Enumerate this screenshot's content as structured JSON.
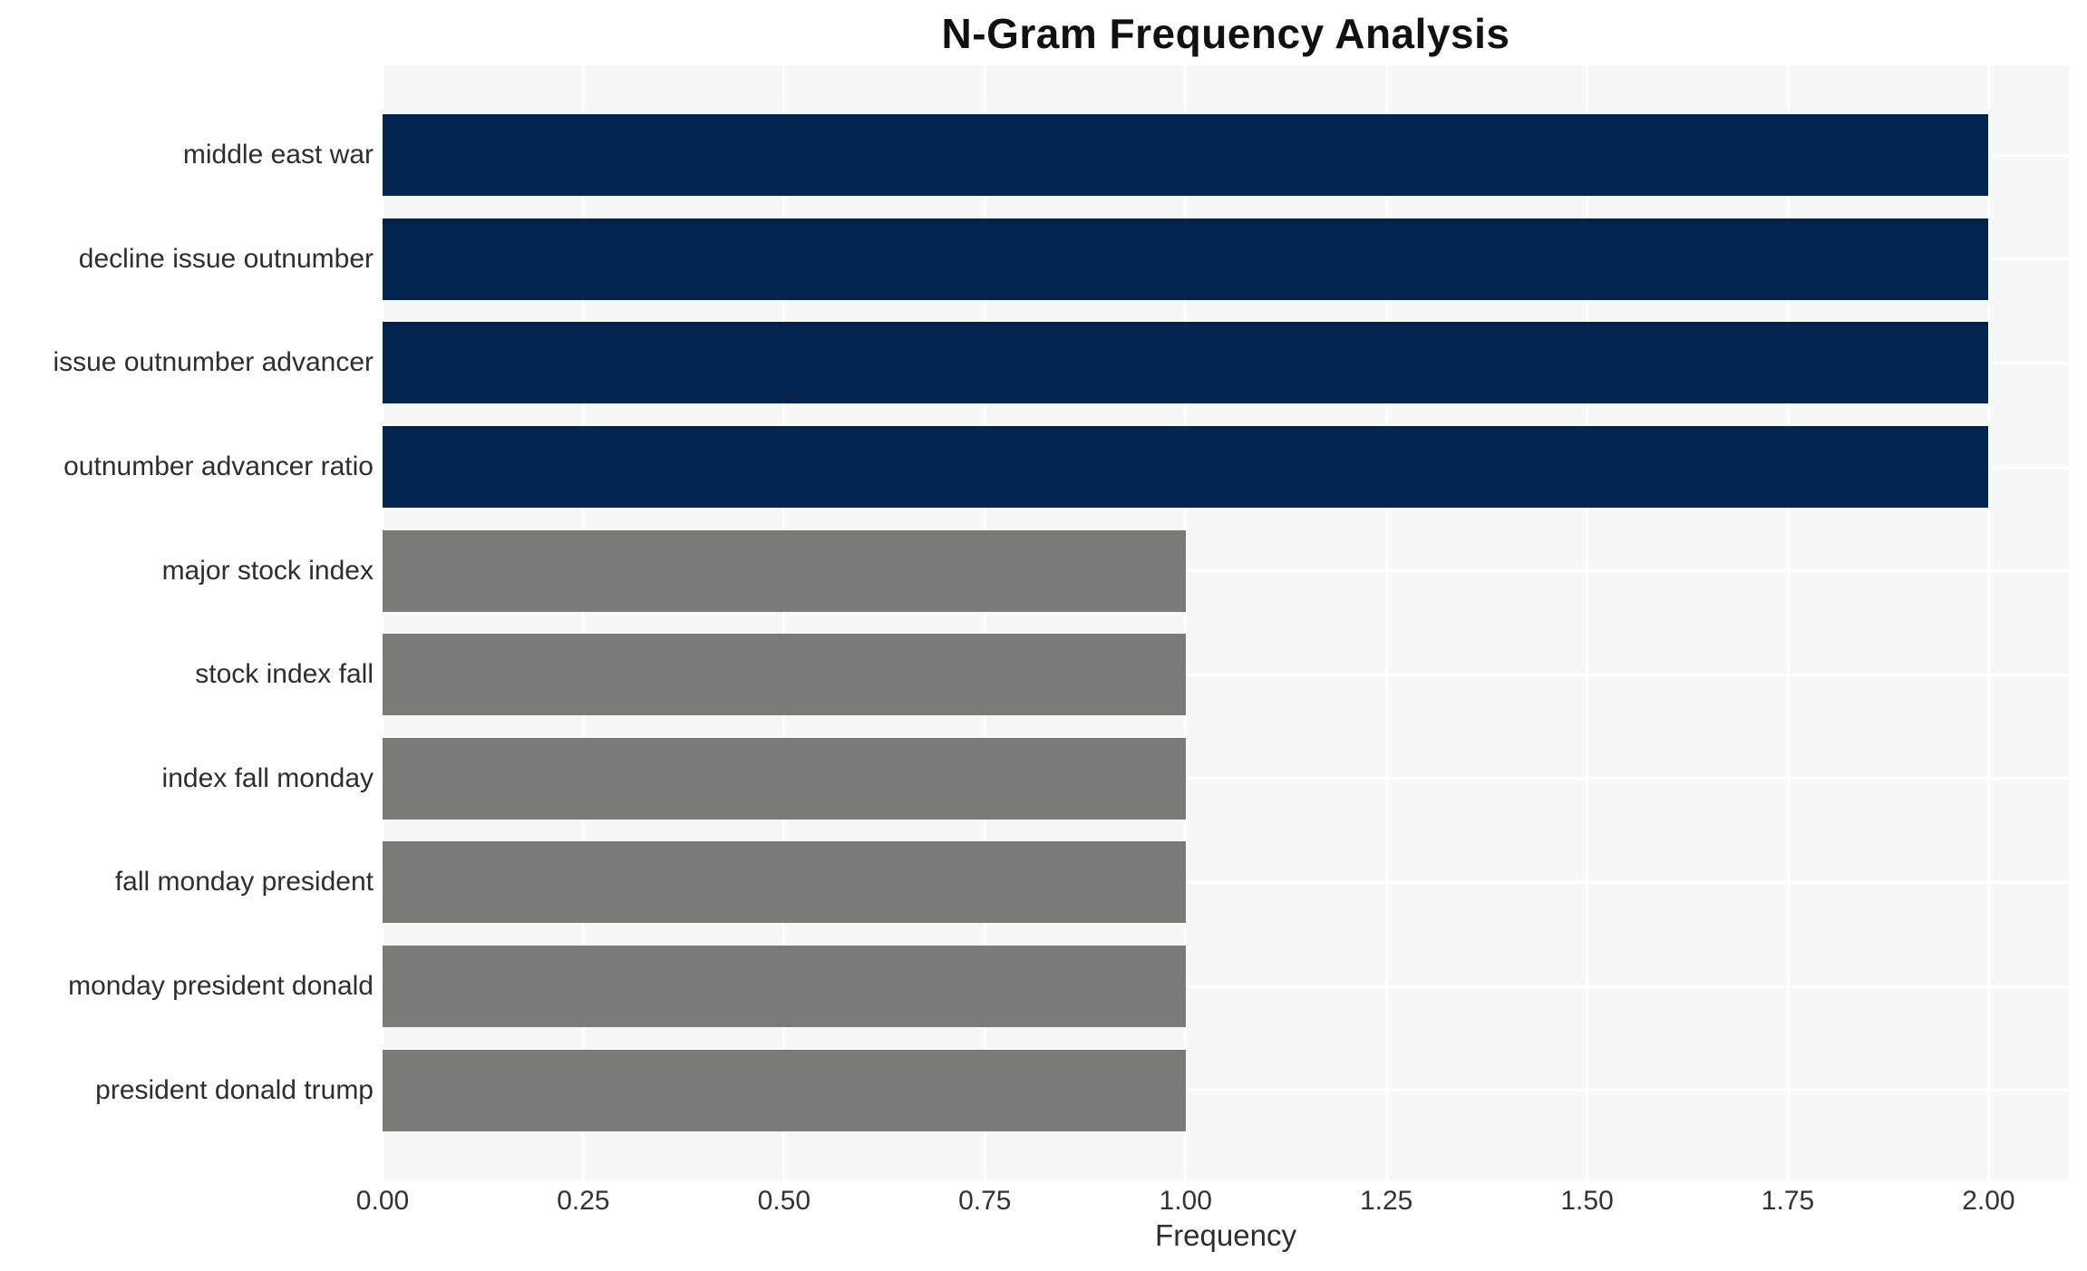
{
  "chart_data": {
    "type": "bar",
    "orientation": "horizontal",
    "title": "N-Gram Frequency Analysis",
    "xlabel": "Frequency",
    "ylabel": "",
    "categories": [
      "middle east war",
      "decline issue outnumber",
      "issue outnumber advancer",
      "outnumber advancer ratio",
      "major stock index",
      "stock index fall",
      "index fall monday",
      "fall monday president",
      "monday president donald",
      "president donald trump"
    ],
    "values": [
      2,
      2,
      2,
      2,
      1,
      1,
      1,
      1,
      1,
      1
    ],
    "bar_colors": [
      "#02234d",
      "#02234d",
      "#02234d",
      "#02234d",
      "#7a7a77",
      "#7a7a77",
      "#7a7a77",
      "#7a7a77",
      "#7a7a77",
      "#7a7a77"
    ],
    "xlim": [
      0,
      2.1
    ],
    "xticks": [
      {
        "value": 0.0,
        "label": "0.00"
      },
      {
        "value": 0.25,
        "label": "0.25"
      },
      {
        "value": 0.5,
        "label": "0.50"
      },
      {
        "value": 0.75,
        "label": "0.75"
      },
      {
        "value": 1.0,
        "label": "1.00"
      },
      {
        "value": 1.25,
        "label": "1.25"
      },
      {
        "value": 1.5,
        "label": "1.50"
      },
      {
        "value": 1.75,
        "label": "1.75"
      },
      {
        "value": 2.0,
        "label": "2.00"
      }
    ],
    "grid": true,
    "legend": false,
    "colors": {
      "plot_background": "#f7f7f7",
      "grid_line": "#ffffff",
      "bar_high": "#02234d",
      "bar_low": "#7a7a77",
      "title_text": "#111111",
      "tick_text": "#333333",
      "label_text": "#2e2e2e"
    }
  }
}
